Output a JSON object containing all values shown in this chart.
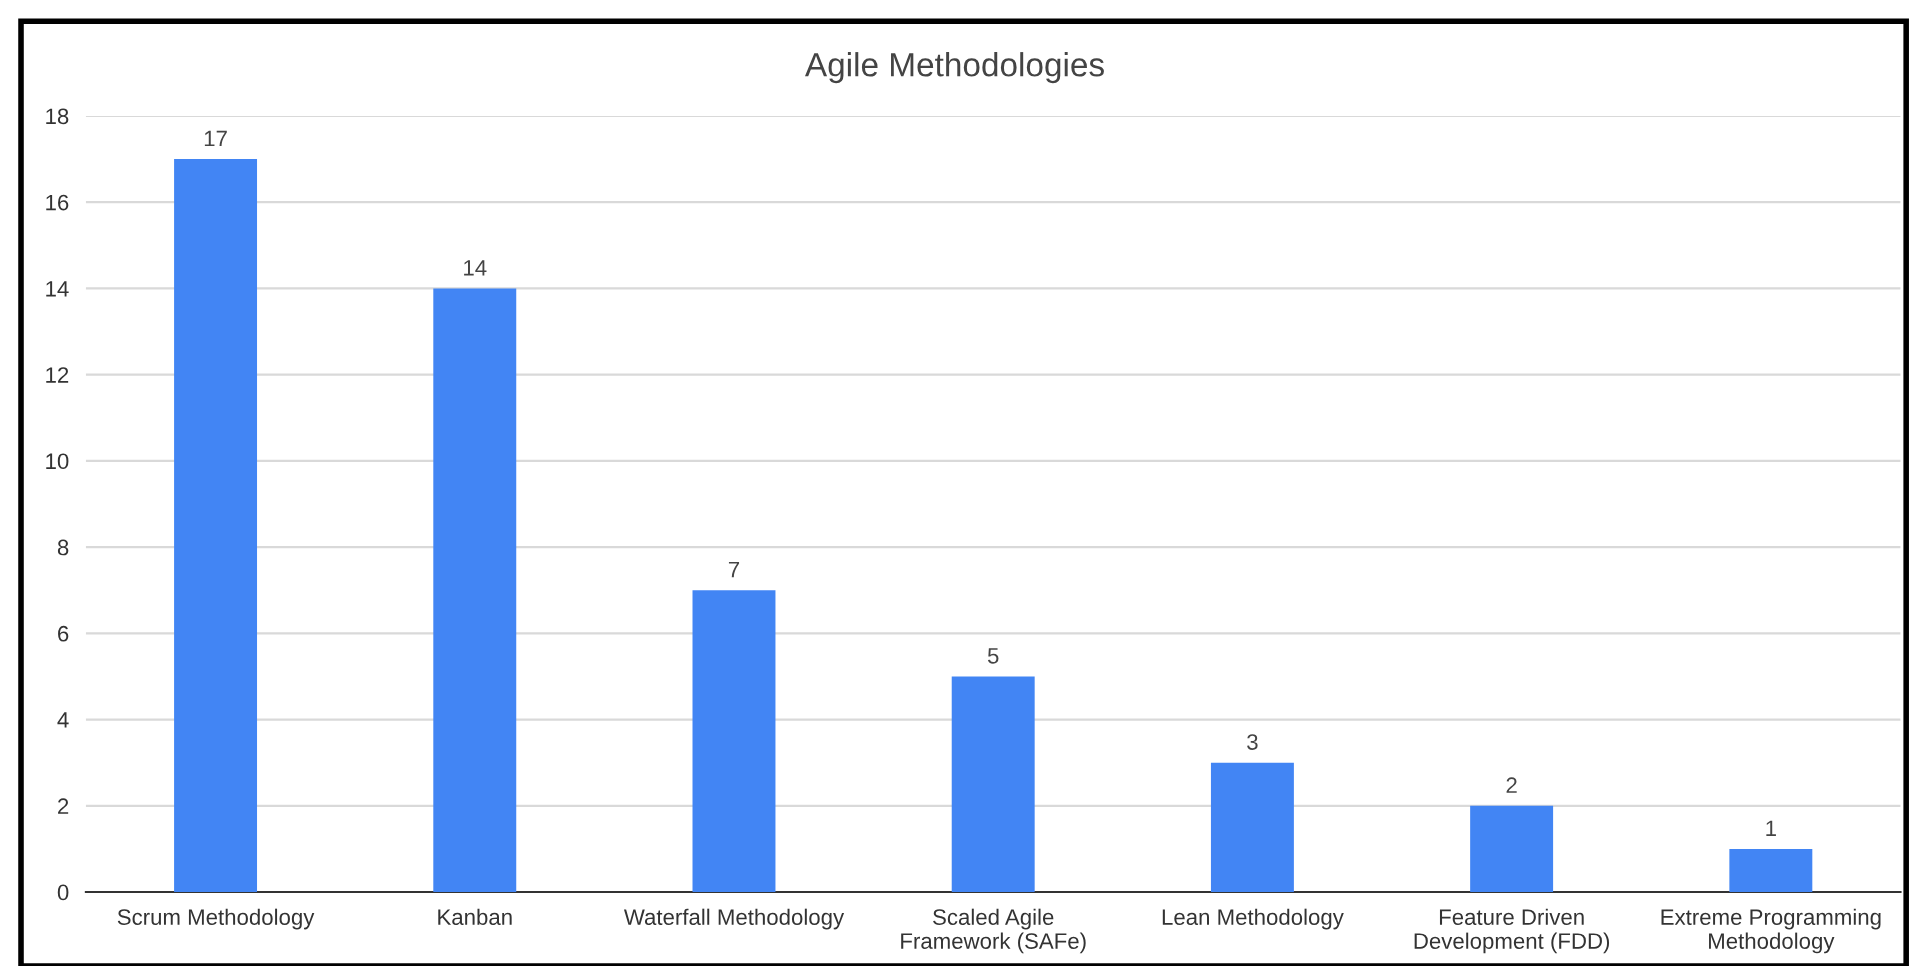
{
  "chart_data": {
    "type": "bar",
    "title": "Agile Methodologies",
    "categories": [
      "Scrum Methodology",
      "Kanban",
      "Waterfall Methodology",
      "Scaled Agile\nFramework (SAFe)",
      "Lean Methodology",
      "Feature Driven\nDevelopment (FDD)",
      "Extreme Programming\nMethodology"
    ],
    "values": [
      17,
      14,
      7,
      5,
      3,
      2,
      1
    ],
    "color": "#4285f4",
    "ylim": [
      0,
      18
    ],
    "yticks": [
      0,
      2,
      4,
      6,
      8,
      10,
      12,
      14,
      16,
      18
    ],
    "grid": "y",
    "data_labels": true
  }
}
